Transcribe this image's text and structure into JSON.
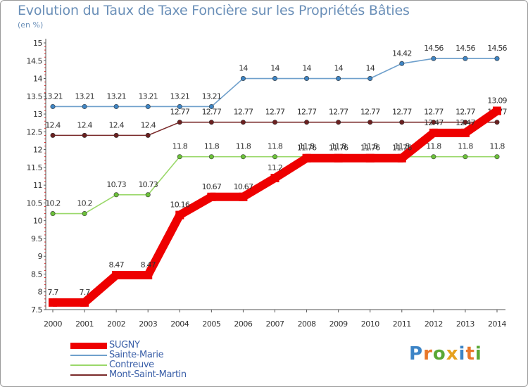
{
  "title": "Evolution du Taux de Taxe Foncière sur les Propriétés Bâties",
  "unit_label": "(en %)",
  "logo": {
    "text": "Proxiti",
    "letters": [
      "P",
      "r",
      "o",
      "x",
      "i",
      "t",
      "i"
    ],
    "colors": [
      "#3c84c6",
      "#e8772a",
      "#5aa836",
      "#e6a11e",
      "#3c84c6",
      "#e8772a",
      "#5aa836"
    ]
  },
  "chart_data": {
    "type": "line",
    "title": "Evolution du Taux de Taxe Foncière sur les Propriétés Bâties",
    "ylabel": "(en %)",
    "xlabel": "",
    "x": [
      "2000",
      "2001",
      "2002",
      "2003",
      "2004",
      "2005",
      "2006",
      "2007",
      "2008",
      "2009",
      "2010",
      "2011",
      "2012",
      "2013",
      "2014"
    ],
    "ylim": [
      7.5,
      15
    ],
    "yticks": [
      "7.5",
      "8",
      "8.5",
      "9",
      "9.5",
      "10",
      "10.5",
      "11",
      "11.5",
      "12",
      "12.5",
      "13",
      "13.5",
      "14",
      "14.5",
      "15"
    ],
    "grid": false,
    "legend_position": "bottom-left",
    "series": [
      {
        "name": "Sainte-Marie",
        "color": "#6fa0cc",
        "marker_color": "#3f85c4",
        "emphasis": false,
        "values": [
          13.21,
          13.21,
          13.21,
          13.21,
          13.21,
          13.21,
          14,
          14,
          14,
          14,
          14,
          14.42,
          14.56,
          14.56,
          14.56
        ],
        "labels": [
          "13.21",
          "13.21",
          "13.21",
          "13.21",
          "13.21",
          "13.21",
          "14",
          "14",
          "14",
          "14",
          "14",
          "14.42",
          "14.56",
          "14.56",
          "14.56"
        ]
      },
      {
        "name": "Mont-Saint-Martin",
        "color": "#7a2a2a",
        "marker_color": "#6b2020",
        "emphasis": false,
        "values": [
          12.4,
          12.4,
          12.4,
          12.4,
          12.77,
          12.77,
          12.77,
          12.77,
          12.77,
          12.77,
          12.77,
          12.77,
          12.77,
          12.77,
          12.77
        ],
        "labels": [
          "12.4",
          "12.4",
          "12.4",
          "12.4",
          "12.77",
          "12.77",
          "12.77",
          "12.77",
          "12.77",
          "12.77",
          "12.77",
          "12.77",
          "12.77",
          "12.77",
          "12.77"
        ]
      },
      {
        "name": "Contreuve",
        "color": "#9ad86a",
        "marker_color": "#6cc23a",
        "emphasis": false,
        "values": [
          10.2,
          10.2,
          10.73,
          10.73,
          11.8,
          11.8,
          11.8,
          11.8,
          11.8,
          11.8,
          11.8,
          11.8,
          11.8,
          11.8,
          11.8
        ],
        "labels": [
          "10.2",
          "10.2",
          "10.73",
          "10.73",
          "11.8",
          "11.8",
          "11.8",
          "11.8",
          "11.8",
          "11.8",
          "11.8",
          "11.8",
          "11.8",
          "11.8",
          "11.8"
        ]
      },
      {
        "name": "SUGNY",
        "color": "#ee0000",
        "marker_color": "#ee0000",
        "emphasis": true,
        "values": [
          7.7,
          7.7,
          8.47,
          8.47,
          10.16,
          10.67,
          10.67,
          11.2,
          11.76,
          11.76,
          11.76,
          11.76,
          12.47,
          12.47,
          13.09
        ],
        "labels": [
          "7.7",
          "7.7",
          "8.47",
          "8.47",
          "10.16",
          "10.67",
          "10.67",
          "11.2",
          "11.76",
          "11.76",
          "11.76",
          "11.76",
          "12.47",
          "12.47",
          "13.09"
        ]
      }
    ],
    "legend_order": [
      "SUGNY",
      "Sainte-Marie",
      "Contreuve",
      "Mont-Saint-Martin"
    ]
  }
}
